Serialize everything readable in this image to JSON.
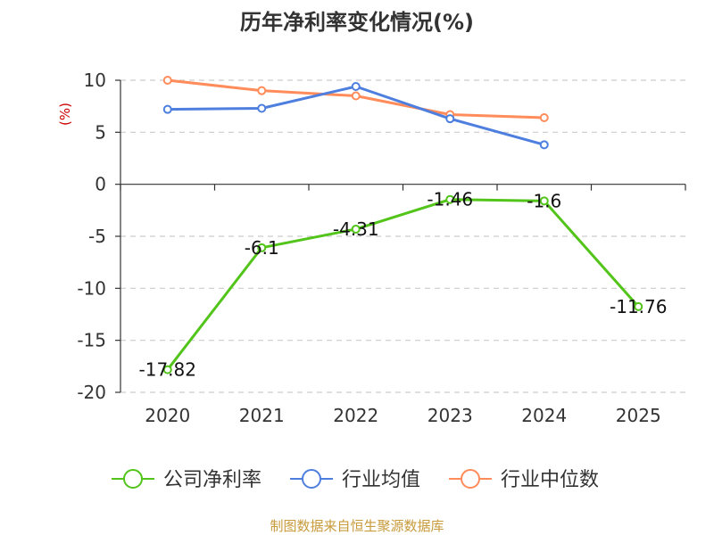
{
  "chart_data": {
    "type": "line",
    "title": "历年净利率变化情况(%)",
    "ylabel": "(%)",
    "categories": [
      "2020",
      "2021",
      "2022",
      "2023",
      "2024",
      "2025"
    ],
    "ylim": [
      -20,
      10
    ],
    "yticks": [
      10,
      5,
      0,
      -5,
      -10,
      -15,
      -20
    ],
    "grid": true,
    "legend_position": "bottom",
    "series": [
      {
        "name": "公司净利率",
        "color": "#52c41a",
        "values": [
          -17.82,
          -6.1,
          -4.31,
          -1.46,
          -1.6,
          -11.76
        ],
        "labels": [
          "-17.82",
          "-6.1",
          "-4.31",
          "-1.46",
          "-1.6",
          "-11.76"
        ]
      },
      {
        "name": "行业均值",
        "color": "#4e7fde",
        "values": [
          7.2,
          7.3,
          9.4,
          6.3,
          3.8,
          null
        ]
      },
      {
        "name": "行业中位数",
        "color": "#ff8c5a",
        "values": [
          10.0,
          9.0,
          8.5,
          6.7,
          6.4,
          null
        ]
      }
    ]
  },
  "footer": "制图数据来自恒生聚源数据库"
}
